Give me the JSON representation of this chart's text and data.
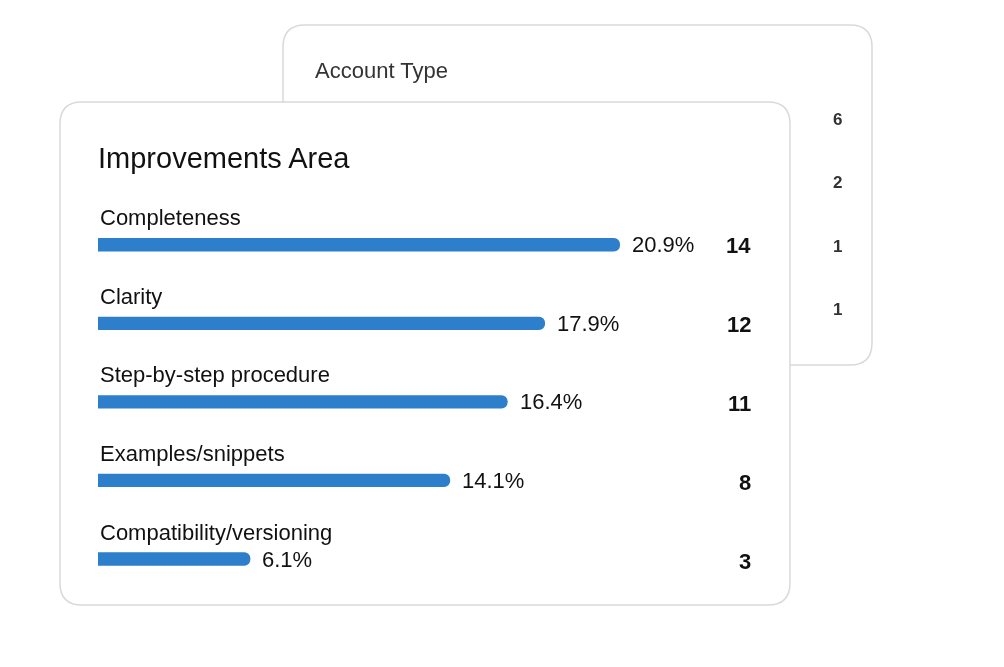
{
  "chart_data": [
    {
      "type": "other",
      "title": "Account Type",
      "annotations": [
        "6",
        "2",
        "1",
        "1"
      ]
    },
    {
      "type": "bar",
      "title": "Improvements Area",
      "orientation": "horizontal",
      "color": "#2d7fcc",
      "categories": [
        "Completeness",
        "Clarity",
        "Step-by-step procedure",
        "Examples/snippets",
        "Compatibility/versioning"
      ],
      "values": [
        20.9,
        17.9,
        16.4,
        14.1,
        6.1
      ],
      "value_labels": [
        "20.9%",
        "17.9%",
        "16.4%",
        "14.1%",
        "6.1%"
      ],
      "annotations": [
        "14",
        "12",
        "11",
        "8",
        "3"
      ]
    }
  ]
}
